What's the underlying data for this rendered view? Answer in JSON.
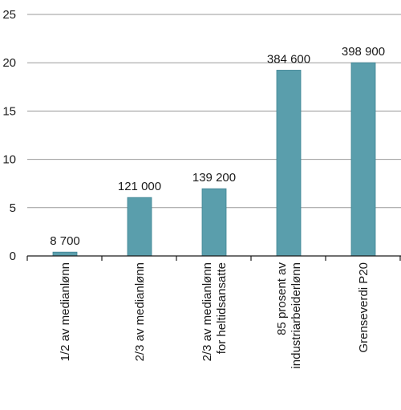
{
  "chart_data": {
    "type": "bar",
    "categories": [
      [
        "1/2 av medianlønn"
      ],
      [
        "2/3 av medianlønn"
      ],
      [
        "2/3 av medianlønn",
        "for heltidsansatte"
      ],
      [
        "85 prosent av",
        "industriarbeiderlønn"
      ],
      [
        "Grenseverdi P20"
      ]
    ],
    "values": [
      0.4,
      6.05,
      6.96,
      19.23,
      20.0
    ],
    "data_labels": [
      "8 700",
      "121 000",
      "139 200",
      "384 600",
      "398 900"
    ],
    "yticks": [
      0,
      5,
      10,
      15,
      20,
      25
    ],
    "ylim": [
      0,
      25
    ],
    "grid": true,
    "title": "",
    "xlabel": "",
    "ylabel": "",
    "colors": {
      "bar": "#5a9eac",
      "bar_edge": "#3f8494",
      "grid": "#9a9a9a",
      "text": "#1a1a1a"
    }
  }
}
